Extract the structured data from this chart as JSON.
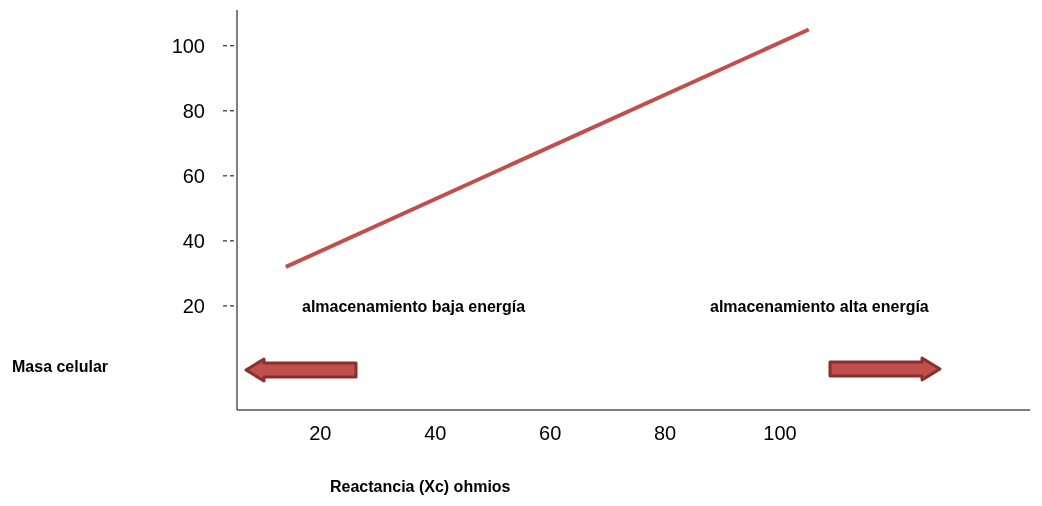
{
  "chart_data": {
    "type": "line",
    "xlabel": "Reactancia (Xc) ohmios",
    "ylabel": "Masa celular",
    "x": [
      14,
      105
    ],
    "series": [
      {
        "color": "#c0504d",
        "values": [
          32,
          105
        ]
      }
    ],
    "xlim": [
      5.5,
      143.5
    ],
    "xticks": [
      20,
      40,
      60,
      80,
      100
    ],
    "ylim": [
      -12,
      111
    ],
    "yticks": [
      20,
      40,
      60,
      80,
      100
    ],
    "grid": false,
    "marker": "none",
    "line_style": "solid",
    "annotations": [
      "almacenamiento baja energía",
      "almacenamiento alta energía"
    ]
  }
}
